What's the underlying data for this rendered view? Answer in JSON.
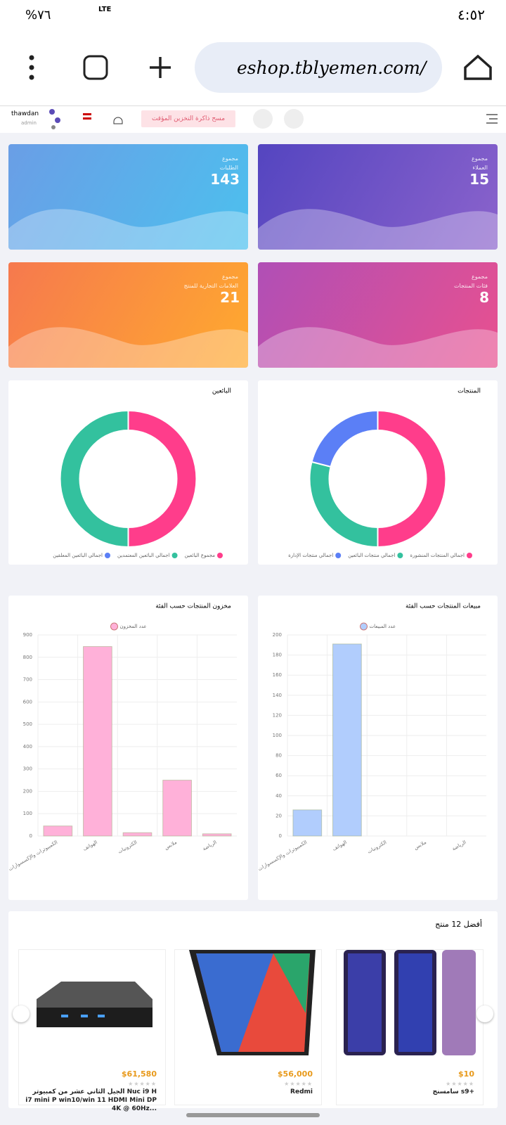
{
  "status_bar": {
    "battery": "%٧٦",
    "network": "LTE",
    "time": "٤:٥٢"
  },
  "browser": {
    "url": "eshop.tblyemen.com/"
  },
  "header": {
    "user": "thawdan",
    "role": "admin",
    "clear_cache": "مسح ذاكرة التخزين المؤقت"
  },
  "cards": [
    {
      "label": "مجموع",
      "name": "الطلبات",
      "value": 143
    },
    {
      "label": "مجموع",
      "name": "العملاء",
      "value": 15
    },
    {
      "label": "مجموع",
      "name": "العلامات التجارية للمنتج",
      "value": 21
    },
    {
      "label": "مجموع",
      "name": "فئات المنتجات",
      "value": 8
    }
  ],
  "chart_data": [
    {
      "type": "doughnut",
      "title": "البائعين",
      "categories": [
        "مجموع البائعين",
        "اجمالي البائعين المعتمدين",
        "اجمالي البائعين المعلقين"
      ],
      "values": [
        50,
        50,
        0
      ],
      "colors": [
        "#ff3d8b",
        "#33c19e",
        "#5b7ff6"
      ]
    },
    {
      "type": "doughnut",
      "title": "المنتجات",
      "categories": [
        "اجمالي المنتجات المنشورة",
        "اجمالي منتجات البائعين",
        "اجمالي منتجات الإدارة"
      ],
      "values": [
        50,
        29,
        21
      ],
      "colors": [
        "#ff3d8b",
        "#33c19e",
        "#5b7ff6"
      ]
    },
    {
      "type": "bar",
      "title": "مخزون المنتجات حسب الفئة",
      "categories": [
        "الكمبيوترات والإكسسوارات",
        "الهواتف",
        "الكترونيات",
        "ملابس",
        "الرياضة"
      ],
      "series": [
        {
          "name": "عدد المخزون",
          "color": "#ffb1d9",
          "values": [
            45,
            848,
            15,
            250,
            10
          ]
        }
      ],
      "ylim": [
        0,
        900
      ],
      "yticks": [
        0,
        100,
        200,
        300,
        400,
        500,
        600,
        700,
        800,
        900
      ],
      "grid": true
    },
    {
      "type": "bar",
      "title": "مبيعات المنتجات حسب الفئة",
      "categories": [
        "الكمبيوترات والإكسسوارات",
        "الهواتف",
        "الكترونيات",
        "ملابس",
        "الرياضة"
      ],
      "series": [
        {
          "name": "عدد المبيعات",
          "color": "#b1cdfd",
          "values": [
            26,
            191,
            0,
            0,
            0
          ]
        }
      ],
      "ylim": [
        0,
        200
      ],
      "yticks": [
        0,
        20,
        40,
        60,
        80,
        100,
        120,
        140,
        160,
        180,
        200
      ],
      "grid": true
    }
  ],
  "products": {
    "title": "أفضل 12 منتج",
    "items": [
      {
        "name": "سامسنج s9+",
        "price": "$10"
      },
      {
        "name": "Redmi",
        "price": "$56,000"
      },
      {
        "name": "الجيل الثاني عشر من كمبيوتر Nuc i9 H i7 mini P win10/win 11 HDMI Mini DP 4K @ 60Hz...",
        "price": "$61,580"
      }
    ]
  }
}
